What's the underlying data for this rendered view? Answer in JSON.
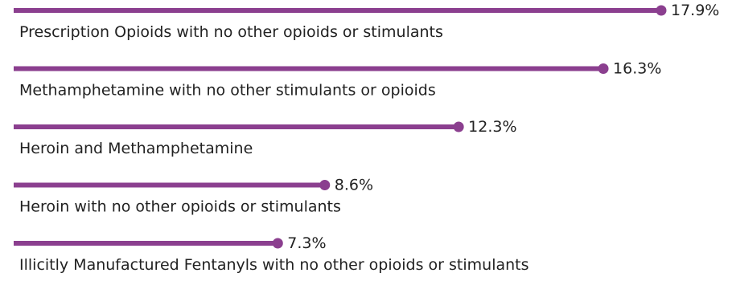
{
  "chart_data": {
    "type": "bar",
    "orientation": "horizontal",
    "categories": [
      "Prescription Opioids with no other opioids or stimulants",
      "Methamphetamine with no other stimulants or opioids",
      "Heroin and Methamphetamine",
      "Heroin with no other opioids or stimulants",
      "Illicitly Manufactured Fentanyls with no other opioids or stimulants"
    ],
    "values": [
      17.9,
      16.3,
      12.3,
      8.6,
      7.3
    ],
    "value_labels": [
      "17.9%",
      "16.3%",
      "12.3%",
      "8.6%",
      "7.3%"
    ],
    "xlim": [
      0,
      17.9
    ],
    "grid": false,
    "style": "lollipop",
    "bar_color": "#8b3f8f"
  }
}
